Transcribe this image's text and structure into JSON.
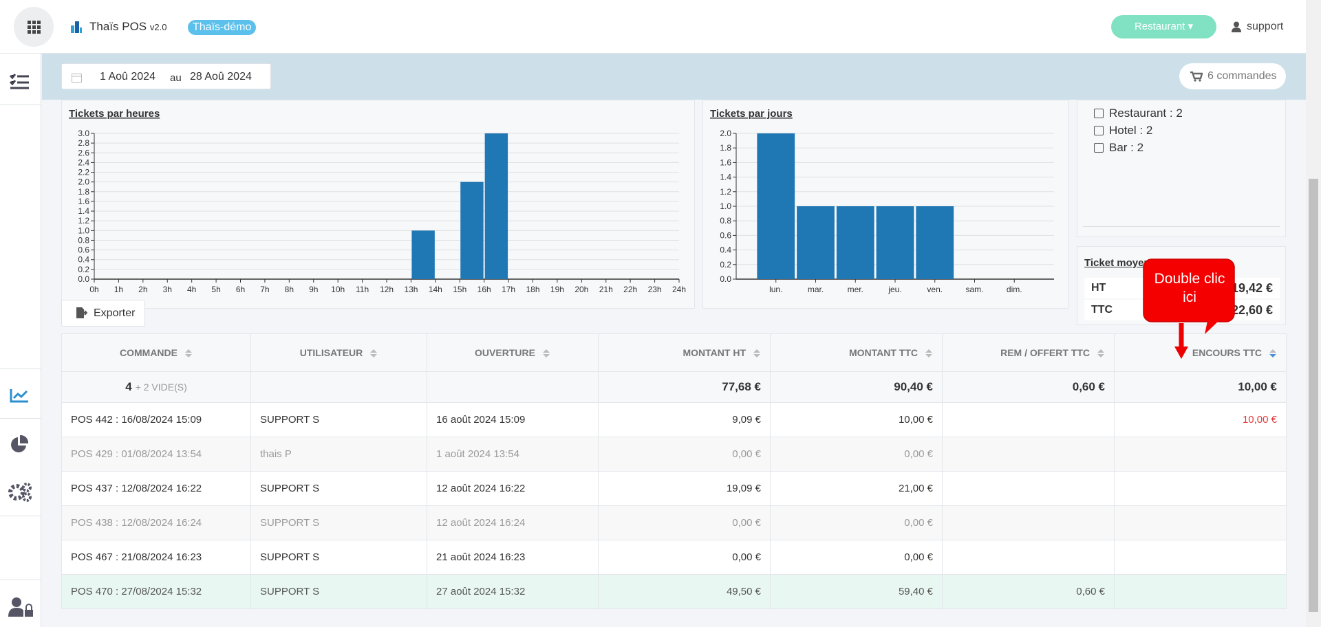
{
  "header": {
    "app_name": "Thaïs POS",
    "version": "v2.0",
    "badge": "Thaïs-démo",
    "restaurant_button": "Restaurant",
    "user": "support"
  },
  "toolbar": {
    "date_from": "1 Aoû 2024",
    "date_sep": "au",
    "date_to": "28 Aoû 2024",
    "orders": "6 commandes"
  },
  "chart_data": [
    {
      "type": "histogram",
      "title": "Tickets par heures",
      "bins": [
        0,
        1,
        2,
        3,
        4,
        5,
        6,
        7,
        8,
        9,
        10,
        11,
        12,
        13,
        14,
        15,
        16,
        17,
        18,
        19,
        20,
        21,
        22,
        23,
        24
      ],
      "values": [
        0,
        0,
        0,
        0,
        0,
        0,
        0,
        0,
        0,
        0,
        0,
        0,
        0,
        1,
        0,
        2,
        3,
        0,
        0,
        0,
        0,
        0,
        0,
        0
      ],
      "color": "#1f77b4",
      "xlim": [
        0,
        24
      ],
      "xticks": [
        {
          "value": 0,
          "label": "0h"
        },
        {
          "value": 1,
          "label": "1h"
        },
        {
          "value": 2,
          "label": "2h"
        },
        {
          "value": 3,
          "label": "3h"
        },
        {
          "value": 4,
          "label": "4h"
        },
        {
          "value": 5,
          "label": "5h"
        },
        {
          "value": 6,
          "label": "6h"
        },
        {
          "value": 7,
          "label": "7h"
        },
        {
          "value": 8,
          "label": "8h"
        },
        {
          "value": 9,
          "label": "9h"
        },
        {
          "value": 10,
          "label": "10h"
        },
        {
          "value": 11,
          "label": "11h"
        },
        {
          "value": 12,
          "label": "12h"
        },
        {
          "value": 13,
          "label": "13h"
        },
        {
          "value": 14,
          "label": "14h"
        },
        {
          "value": 15,
          "label": "15h"
        },
        {
          "value": 16,
          "label": "16h"
        },
        {
          "value": 17,
          "label": "17h"
        },
        {
          "value": 18,
          "label": "18h"
        },
        {
          "value": 19,
          "label": "19h"
        },
        {
          "value": 20,
          "label": "20h"
        },
        {
          "value": 21,
          "label": "21h"
        },
        {
          "value": 22,
          "label": "22h"
        },
        {
          "value": 23,
          "label": "23h"
        },
        {
          "value": 24,
          "label": "24h"
        }
      ],
      "ylim": [
        0,
        3
      ],
      "yticks": [
        {
          "value": 0,
          "label": "0.0"
        },
        0.2,
        0.4,
        0.6,
        0.8,
        {
          "value": 1,
          "label": "1.0"
        },
        1.2,
        1.4,
        1.6,
        1.8,
        {
          "value": 2,
          "label": "2.0"
        },
        2.2,
        2.4,
        2.6,
        2.8,
        {
          "value": 3,
          "label": "3.0"
        }
      ],
      "grid": true
    },
    {
      "type": "bar",
      "title": "Tickets par jours",
      "categories": [
        "lun.",
        "mar.",
        "mer.",
        "jeu.",
        "ven.",
        "sam.",
        "dim."
      ],
      "values": [
        2,
        1,
        1,
        1,
        1,
        0,
        0
      ],
      "color": "#1f77b4",
      "ylim": [
        0,
        2
      ],
      "yticks": [
        {
          "value": 0,
          "label": "0.0"
        },
        0.2,
        0.4,
        0.6,
        0.8,
        {
          "value": 1,
          "label": "1.0"
        },
        1.2,
        1.4,
        1.6,
        1.8,
        {
          "value": 2,
          "label": "2.0"
        }
      ],
      "grid": true
    }
  ],
  "filters": [
    "Restaurant : 2",
    "Hotel : 2",
    "Bar : 2"
  ],
  "ticket_moyen": {
    "title": "Ticket moyen",
    "rows": [
      {
        "label": "HT",
        "value": "19,42 €"
      },
      {
        "label": "TTC",
        "value": "22,60 €"
      }
    ]
  },
  "export_button": "Exporter",
  "callout": "Double clic ici",
  "table": {
    "headers": [
      "COMMANDE",
      "UTILISATEUR",
      "OUVERTURE",
      "MONTANT HT",
      "MONTANT TTC",
      "REM / OFFERT TTC",
      "ENCOURS TTC"
    ],
    "summary": {
      "count": "4",
      "empty": "+ 2 VIDE(S)",
      "ht": "77,68 €",
      "ttc": "90,40 €",
      "rem": "0,60 €",
      "encours": "10,00 €"
    },
    "rows": [
      {
        "commande": "POS 442 : 16/08/2024 15:09",
        "utilisateur": "SUPPORT S",
        "ouverture": "16 août 2024 15:09",
        "ht": "9,09 €",
        "ttc": "10,00 €",
        "encours": "10,00 €"
      },
      {
        "commande": "POS 429 : 01/08/2024 13:54",
        "utilisateur": "thais P",
        "ouverture": "1 août 2024 13:54",
        "ht": "0,00 €",
        "ttc": "0,00 €"
      },
      {
        "commande": "POS 437 : 12/08/2024 16:22",
        "utilisateur": "SUPPORT S",
        "ouverture": "12 août 2024 16:22",
        "ht": "19,09 €",
        "ttc": "21,00 €"
      },
      {
        "commande": "POS 438 : 12/08/2024 16:24",
        "utilisateur": "SUPPORT S",
        "ouverture": "12 août 2024 16:24",
        "ht": "0,00 €",
        "ttc": "0,00 €"
      },
      {
        "commande": "POS 467 : 21/08/2024 16:23",
        "utilisateur": "SUPPORT S",
        "ouverture": "21 août 2024 16:23",
        "ht": "0,00 €",
        "ttc": "0,00 €"
      },
      {
        "commande": "POS 470 : 27/08/2024 15:32",
        "utilisateur": "SUPPORT S",
        "ouverture": "27 août 2024 15:32",
        "ht": "49,50 €",
        "ttc": "59,40 €",
        "rem": "0,60 €"
      }
    ]
  }
}
